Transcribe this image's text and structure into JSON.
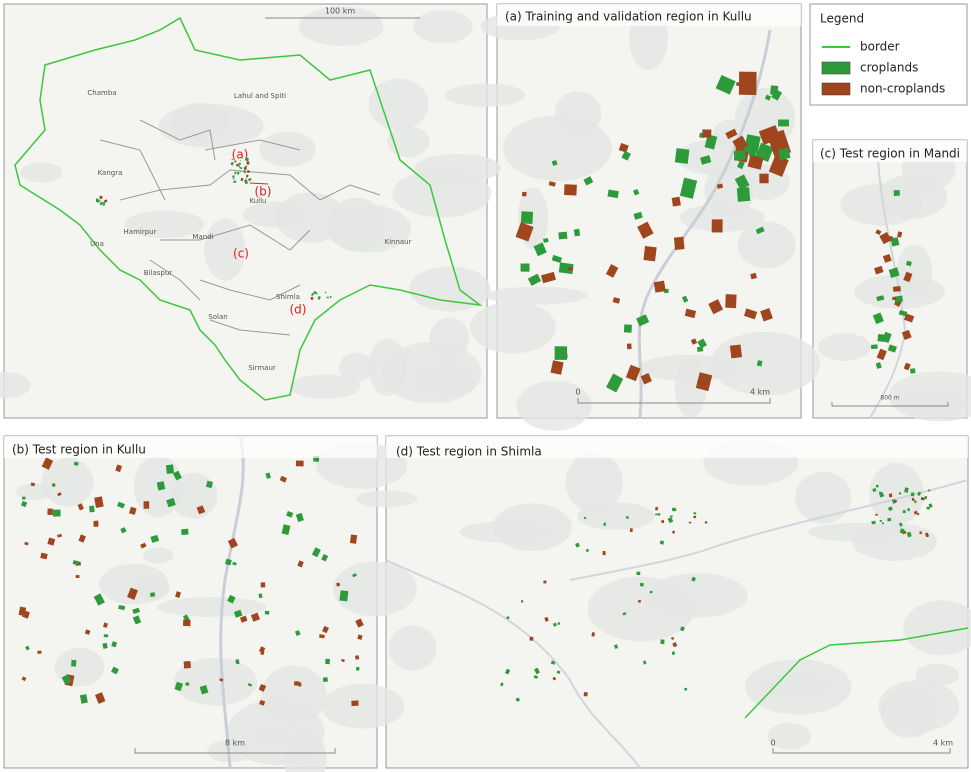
{
  "overview": {
    "scale_label": "100 km",
    "districts": [
      "Chamba",
      "Lahul and Spiti",
      "Kangra",
      "Kullu",
      "Una",
      "Hamirpur",
      "Mandi",
      "Kinnaur",
      "Bilaspur",
      "Shimla",
      "Solan",
      "Sirmaur"
    ],
    "region_labels": [
      "(a)",
      "(b)",
      "(c)",
      "(d)"
    ]
  },
  "legend": {
    "title": "Legend",
    "items": [
      {
        "label": "border",
        "color": "#3cc83c"
      },
      {
        "label": "croplands",
        "color": "#2e9b3a"
      },
      {
        "label": "non-croplands",
        "color": "#a0461e"
      }
    ]
  },
  "panels": [
    {
      "title": "(a) Training and validation region in Kullu",
      "scale_labels": [
        "0",
        "4 km"
      ]
    },
    {
      "title": "(c) Test region in Mandi",
      "scale_labels": [
        "800 m"
      ]
    },
    {
      "title": "(b) Test region in Kullu",
      "scale_labels": [
        "8 km"
      ]
    },
    {
      "title": "(d) Test region in Shimla",
      "scale_labels": [
        "0",
        "4 km"
      ]
    }
  ]
}
